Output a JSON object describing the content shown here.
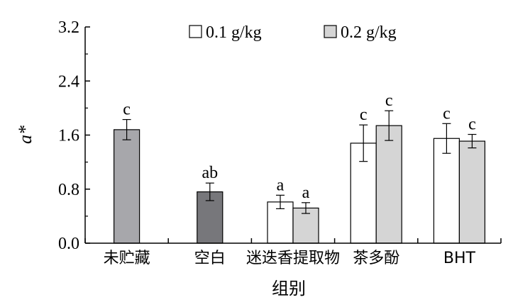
{
  "chart_data": {
    "type": "bar",
    "xlabel": "组别",
    "ylabel": "a*",
    "ylim": [
      0,
      3.2
    ],
    "yticks": [
      "0.0",
      "0.8",
      "1.6",
      "2.4",
      "3.2"
    ],
    "grid": false,
    "legend_position": "top",
    "categories": [
      "未贮藏",
      "空白",
      "迷迭香提取物",
      "茶多酚",
      "BHT"
    ],
    "series": [
      {
        "name": "0.1 g/kg",
        "color": "#ffffff",
        "values": [
          null,
          null,
          0.61,
          1.48,
          1.55
        ],
        "errors": [
          null,
          null,
          0.1,
          0.27,
          0.22
        ],
        "labels": [
          null,
          null,
          "a",
          "c",
          "c"
        ]
      },
      {
        "name": "0.2 g/kg",
        "color": "#d5d5d5",
        "values": [
          null,
          null,
          0.52,
          1.74,
          1.51
        ],
        "errors": [
          null,
          null,
          0.08,
          0.22,
          0.1
        ],
        "labels": [
          null,
          null,
          "a",
          "c",
          "c"
        ]
      }
    ],
    "single_bars": [
      {
        "category": "未贮藏",
        "value": 1.68,
        "error": 0.15,
        "label": "c",
        "color": "#a7a7ab"
      },
      {
        "category": "空白",
        "value": 0.76,
        "error": 0.13,
        "label": "ab",
        "color": "#77777b"
      }
    ]
  }
}
